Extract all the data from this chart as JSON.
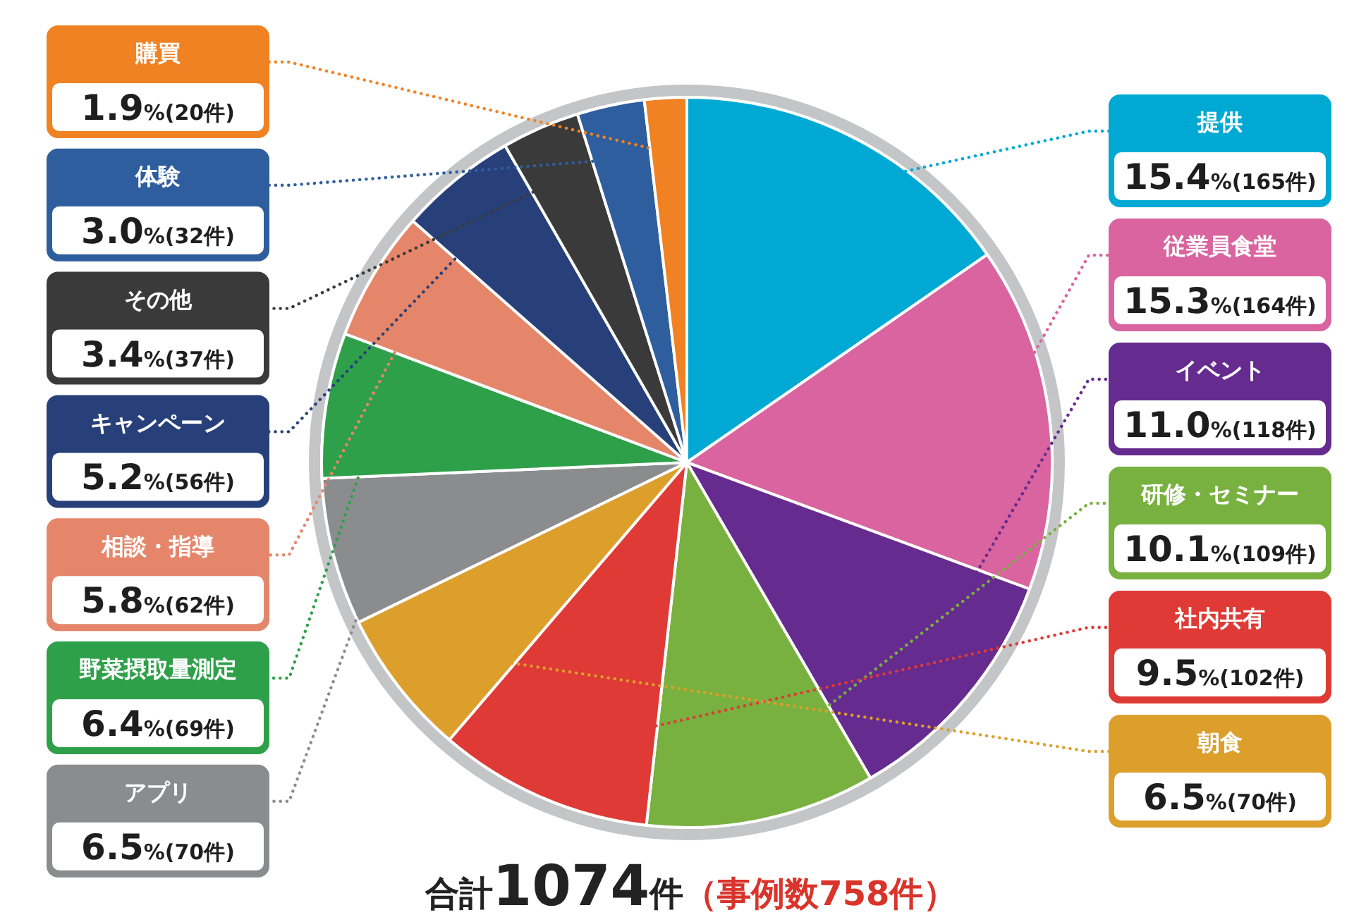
{
  "chart_data": {
    "type": "pie",
    "title": "合計1074件",
    "subtitle": "（事例数758件）",
    "categories": [
      "提供",
      "従業員食堂",
      "イベント",
      "研修・セミナー",
      "社内共有",
      "朝食",
      "アプリ",
      "野菜摂取量測定",
      "相談・指導",
      "キャンペーン",
      "その他",
      "体験",
      "購買"
    ],
    "values": [
      165,
      164,
      118,
      109,
      102,
      70,
      70,
      69,
      62,
      56,
      37,
      32,
      20
    ],
    "colors": [
      "#00a9d4",
      "#d9649f",
      "#652b8f",
      "#78b13f",
      "#df3a35",
      "#dd9f2c",
      "#8b8c8e",
      "#2fa04a",
      "#e5866a",
      "#28407a",
      "#3a3a3a",
      "#2e5e9e",
      "#f08224"
    ],
    "value_labels": [
      "15.4%(165件)",
      "15.3%(164件)",
      "11.0%(118件)",
      "10.1%(109件)",
      "9.5%(102件)",
      "6.5%(70件)",
      "6.5%(70件)",
      "6.4%(69件)",
      "5.8%(62件)",
      "5.2%(56件)",
      "3.4%(37件)",
      "3.0%(32件)",
      "1.9%(20件)"
    ]
  }
}
